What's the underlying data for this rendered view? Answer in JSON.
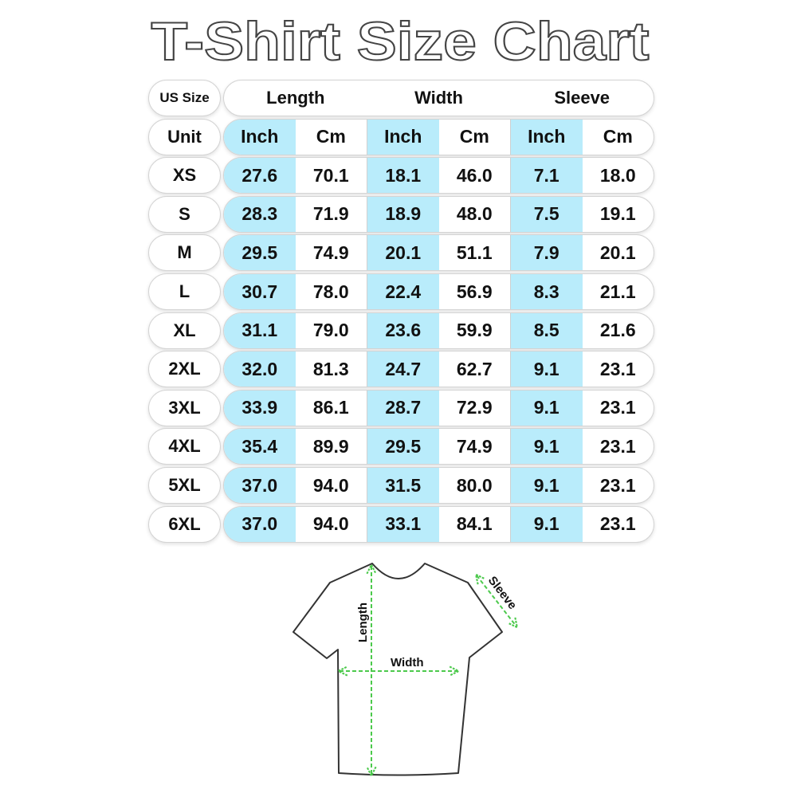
{
  "title": "T-Shirt Size Chart",
  "colors": {
    "inch_column": "#b9ecfb",
    "arrow": "#4cc94c",
    "outline": "#333333"
  },
  "chart_data": {
    "type": "table",
    "title": "T-Shirt Size Chart",
    "header": {
      "size_label": "US Size",
      "groups": [
        "Length",
        "Width",
        "Sleeve"
      ]
    },
    "unit_row": {
      "label": "Unit",
      "units": [
        "Inch",
        "Cm",
        "Inch",
        "Cm",
        "Inch",
        "Cm"
      ]
    },
    "rows": [
      {
        "size": "XS",
        "values": [
          "27.6",
          "70.1",
          "18.1",
          "46.0",
          "7.1",
          "18.0"
        ]
      },
      {
        "size": "S",
        "values": [
          "28.3",
          "71.9",
          "18.9",
          "48.0",
          "7.5",
          "19.1"
        ]
      },
      {
        "size": "M",
        "values": [
          "29.5",
          "74.9",
          "20.1",
          "51.1",
          "7.9",
          "20.1"
        ]
      },
      {
        "size": "L",
        "values": [
          "30.7",
          "78.0",
          "22.4",
          "56.9",
          "8.3",
          "21.1"
        ]
      },
      {
        "size": "XL",
        "values": [
          "31.1",
          "79.0",
          "23.6",
          "59.9",
          "8.5",
          "21.6"
        ]
      },
      {
        "size": "2XL",
        "values": [
          "32.0",
          "81.3",
          "24.7",
          "62.7",
          "9.1",
          "23.1"
        ]
      },
      {
        "size": "3XL",
        "values": [
          "33.9",
          "86.1",
          "28.7",
          "72.9",
          "9.1",
          "23.1"
        ]
      },
      {
        "size": "4XL",
        "values": [
          "35.4",
          "89.9",
          "29.5",
          "74.9",
          "9.1",
          "23.1"
        ]
      },
      {
        "size": "5XL",
        "values": [
          "37.0",
          "94.0",
          "31.5",
          "80.0",
          "9.1",
          "23.1"
        ]
      },
      {
        "size": "6XL",
        "values": [
          "37.0",
          "94.0",
          "33.1",
          "84.1",
          "9.1",
          "23.1"
        ]
      }
    ]
  },
  "diagram": {
    "length_label": "Length",
    "width_label": "Width",
    "sleeve_label": "Sleeve"
  }
}
